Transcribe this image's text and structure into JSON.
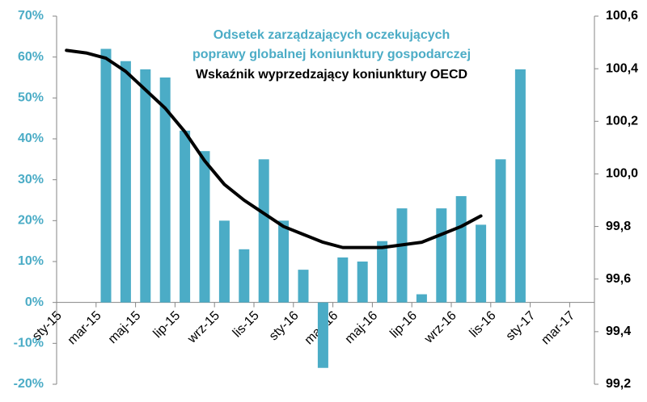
{
  "chart_data": {
    "type": "bar-line",
    "categories": [
      "sty-15",
      null,
      "mar-15",
      null,
      "maj-15",
      null,
      "lip-15",
      null,
      "wrz-15",
      null,
      "lis-15",
      null,
      "sty-16",
      null,
      "mar-16",
      null,
      "maj-16",
      null,
      "lip-16",
      null,
      "wrz-16",
      null,
      "lis-16",
      null,
      "sty-17",
      null,
      "mar-17"
    ],
    "series": [
      {
        "name": "Odsetek zarządzających oczekujących\npoprawy globalnej koniunktury gospodarczej",
        "type": "bar",
        "color": "#4bacc6",
        "values": [
          null,
          null,
          62,
          59,
          57,
          55,
          42,
          37,
          20,
          13,
          35,
          20,
          8,
          -16,
          11,
          10,
          15,
          23,
          2,
          23,
          26,
          19,
          35,
          57,
          null,
          null,
          null
        ]
      },
      {
        "name": "Wskaźnik wyprzedzający koniunktury OECD",
        "type": "line",
        "color": "#000000",
        "axis": "y2",
        "values": [
          100.47,
          100.46,
          100.44,
          100.39,
          100.32,
          100.25,
          100.16,
          100.05,
          99.96,
          99.9,
          99.85,
          99.8,
          99.77,
          99.74,
          99.72,
          99.72,
          99.72,
          99.73,
          99.74,
          99.77,
          99.8,
          99.84,
          null,
          null,
          null,
          null,
          null
        ]
      }
    ],
    "ylim": [
      -20,
      70
    ],
    "yticks": [
      {
        "value": -20,
        "label": "-20%"
      },
      {
        "value": -10,
        "label": "-10%"
      },
      {
        "value": 0,
        "label": "0%"
      },
      {
        "value": 10,
        "label": "10%"
      },
      {
        "value": 20,
        "label": "20%"
      },
      {
        "value": 30,
        "label": "30%"
      },
      {
        "value": 40,
        "label": "40%"
      },
      {
        "value": 50,
        "label": "50%"
      },
      {
        "value": 60,
        "label": "60%"
      },
      {
        "value": 70,
        "label": "70%"
      }
    ],
    "y2lim": [
      99.2,
      100.6
    ],
    "y2ticks": [
      {
        "value": 99.2,
        "label": "99,2"
      },
      {
        "value": 99.4,
        "label": "99,4"
      },
      {
        "value": 99.6,
        "label": "99,6"
      },
      {
        "value": 99.8,
        "label": "99,8"
      },
      {
        "value": 100.0,
        "label": "100,0"
      },
      {
        "value": 100.2,
        "label": "100,2"
      },
      {
        "value": 100.4,
        "label": "100,4"
      },
      {
        "value": 100.6,
        "label": "100,6"
      }
    ],
    "grid": false
  }
}
